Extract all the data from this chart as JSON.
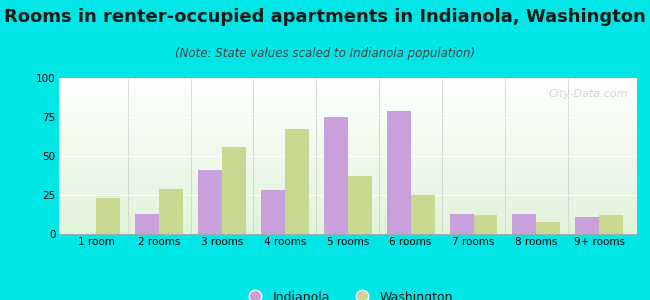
{
  "title": "Rooms in renter-occupied apartments in Indianola, Washington",
  "subtitle": "(Note: State values scaled to Indianola population)",
  "categories": [
    "1 room",
    "2 rooms",
    "3 rooms",
    "4 rooms",
    "5 rooms",
    "6 rooms",
    "7 rooms",
    "8 rooms",
    "9+ rooms"
  ],
  "indianola": [
    0,
    13,
    41,
    28,
    75,
    79,
    13,
    13,
    11
  ],
  "washington": [
    23,
    29,
    56,
    67,
    37,
    25,
    12,
    8,
    12
  ],
  "indianola_color": "#c9a0dc",
  "washington_color": "#c8d890",
  "background_color": "#00e5e5",
  "ylim": [
    0,
    100
  ],
  "yticks": [
    0,
    25,
    50,
    75,
    100
  ],
  "bar_width": 0.38,
  "title_fontsize": 13,
  "subtitle_fontsize": 8.5,
  "tick_fontsize": 7.5,
  "legend_fontsize": 9,
  "watermark_text": "City-Data.com",
  "watermark_color": "#b0baba",
  "watermark_alpha": 0.55
}
